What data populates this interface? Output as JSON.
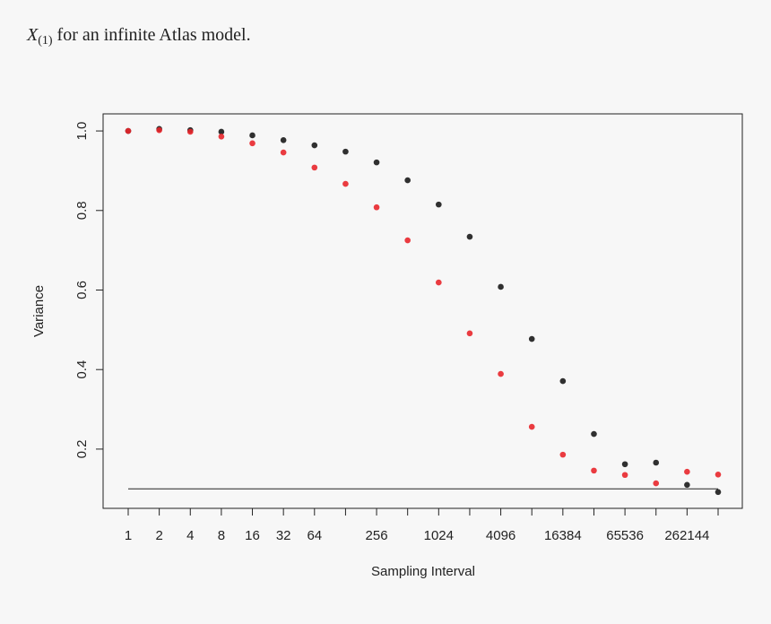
{
  "caption": {
    "symbol": "X",
    "subscript": "(1)",
    "text": " for an infinite Atlas model."
  },
  "chart_data": {
    "type": "scatter",
    "x_label": "Sampling Interval",
    "y_label": "Variance",
    "categories": [
      1,
      2,
      4,
      8,
      16,
      32,
      64,
      null,
      256,
      null,
      1024,
      null,
      4096,
      null,
      16384,
      null,
      65536,
      null,
      262144,
      null
    ],
    "series": [
      {
        "color": "#1a1a1a",
        "values": [
          1.0,
          1.005,
          1.002,
          0.998,
          0.989,
          0.977,
          0.964,
          0.948,
          0.921,
          0.876,
          0.815,
          0.734,
          0.608,
          0.477,
          0.371,
          0.238,
          0.162,
          0.166,
          0.11,
          0.092
        ]
      },
      {
        "color": "#e8262b",
        "values": [
          1.0,
          1.002,
          0.998,
          0.986,
          0.969,
          0.946,
          0.908,
          0.867,
          0.808,
          0.725,
          0.619,
          0.491,
          0.389,
          0.256,
          0.186,
          0.146,
          0.135,
          0.114,
          0.143,
          0.136
        ]
      }
    ],
    "reference_line": 0.1,
    "ylim": [
      0.051,
      1.043
    ],
    "yticks": [
      0.2,
      0.4,
      0.6,
      0.8,
      {
        "value": 1,
        "label": "1.0"
      }
    ]
  }
}
